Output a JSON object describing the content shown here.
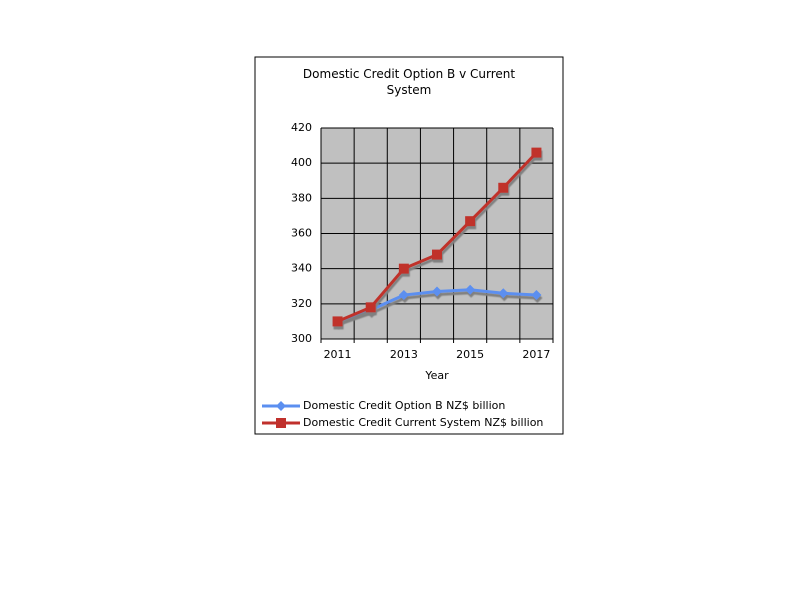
{
  "chart_data": {
    "type": "line",
    "title": "Domestic Credit Option B v Current System",
    "x_label": "Year",
    "categories": [
      "2011",
      null,
      "2013",
      null,
      "2015",
      null,
      "2017"
    ],
    "series": [
      {
        "name": "Domestic Credit Option B NZ$ billion",
        "color": "#5b8ff0",
        "marker": "diamond",
        "values": [
          310,
          316.5,
          325,
          327,
          328,
          326,
          325
        ]
      },
      {
        "name": "Domestic Credit Current System NZ$ billion",
        "color": "#c0302c",
        "marker": "square",
        "values": [
          310,
          318,
          340,
          348,
          367,
          386,
          406
        ]
      }
    ],
    "ylim": [
      300,
      420
    ],
    "yticks": [
      300,
      320,
      340,
      360,
      380,
      400,
      420
    ],
    "grid": true,
    "legend": "bottom",
    "plot_background": "#c0c0c0"
  }
}
